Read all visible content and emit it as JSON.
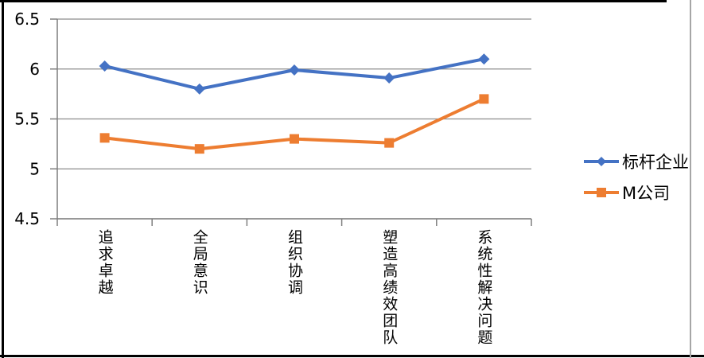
{
  "chart_data": {
    "type": "line",
    "categories": [
      "追求卓越",
      "全局意识",
      "组织协调",
      "塑造高绩效团队",
      "系统性解决问题"
    ],
    "series": [
      {
        "name": "标杆企业",
        "values": [
          6.03,
          5.8,
          5.99,
          5.91,
          6.1
        ],
        "color": "#4472C4",
        "marker": "diamond"
      },
      {
        "name": "M公司",
        "values": [
          5.31,
          5.2,
          5.3,
          5.26,
          5.7
        ],
        "color": "#ED7D31",
        "marker": "square"
      }
    ],
    "y_ticks": [
      "6.5",
      "6",
      "5.5",
      "5",
      "4.5"
    ],
    "ylim": [
      4.5,
      6.5
    ],
    "grid": true,
    "legend_position": "right"
  },
  "colors": {
    "series_benchmark": "#4472C4",
    "series_m_company": "#ED7D31",
    "gridline": "#8c8c8c",
    "axis": "#7f7f7f",
    "text": "#000000",
    "frame": "#000000",
    "frame_right": "#a6a6a6",
    "background": "#ffffff"
  }
}
